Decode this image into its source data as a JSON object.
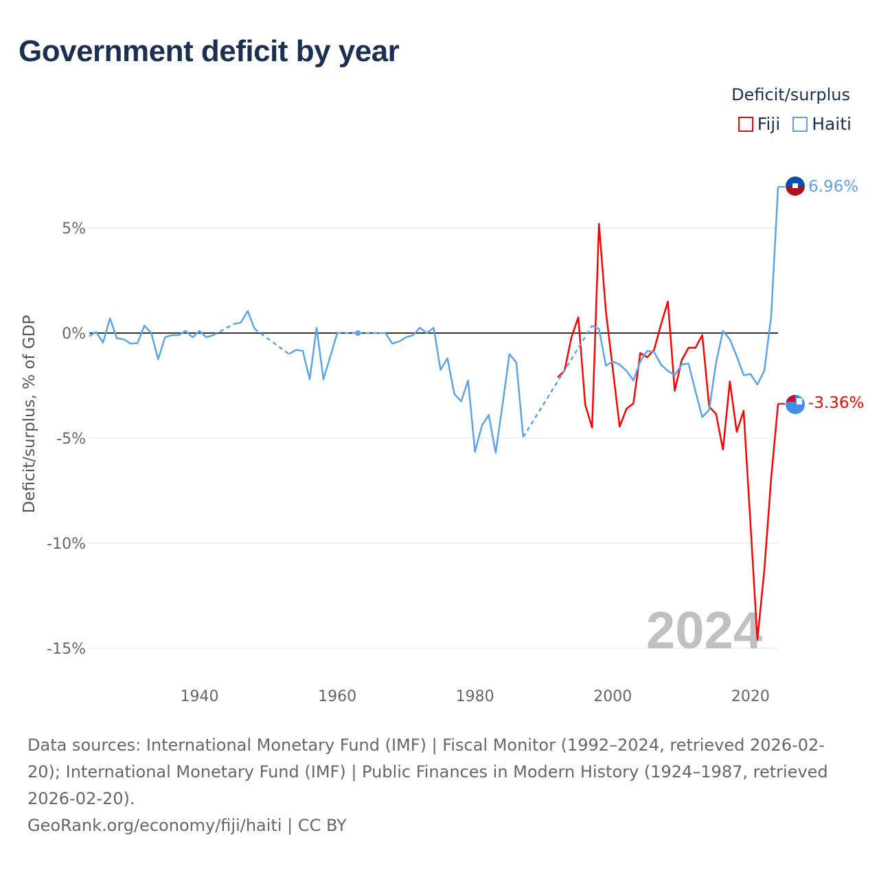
{
  "title": "Government deficit by year",
  "legend": {
    "title": "Deficit/surplus",
    "items": [
      {
        "name": "Fiji",
        "color": "#ff0000"
      },
      {
        "name": "Haiti",
        "color": "#5ba4ec"
      }
    ]
  },
  "watermark_year": "2024",
  "end_labels": {
    "haiti": "6.96%",
    "fiji": "-3.36%"
  },
  "footer": {
    "sources": "Data sources: International Monetary Fund (IMF) | Fiscal Monitor (1992–2024, retrieved 2026-02-20); International Monetary Fund (IMF) | Public Finances in Modern History (1924–1987, retrieved 2026-02-20).",
    "credit": "GeoRank.org/economy/fiji/haiti | CC BY"
  },
  "chart_data": {
    "type": "line",
    "title": "Government deficit by year",
    "xlabel": "",
    "ylabel": "Deficit/surplus, % of GDP",
    "xlim": [
      1924,
      2024
    ],
    "ylim": [
      -16.5,
      8.5
    ],
    "xticks": [
      1940,
      1960,
      1980,
      2000,
      2020
    ],
    "yticks": [
      5,
      0,
      -5,
      -10,
      -15
    ],
    "ytick_labels": [
      "5%",
      "0%",
      "-5%",
      "-10%",
      "-15%"
    ],
    "grid": true,
    "legend_position": "top-right",
    "series": [
      {
        "name": "Haiti",
        "color": "#5ba4ec",
        "start_year": 1924,
        "values": [
          -0.15,
          0.05,
          -0.45,
          0.7,
          -0.25,
          -0.3,
          -0.5,
          -0.48,
          0.35,
          0,
          -1.25,
          -0.2,
          -0.1,
          -0.1,
          0.1,
          -0.2,
          0.1,
          -0.2,
          -0.1,
          null,
          null,
          0.43,
          0.5,
          1.05,
          0.2,
          null,
          null,
          null,
          null,
          -1.0,
          -0.8,
          -0.85,
          -2.2,
          0.25,
          -2.2,
          -1.1,
          0,
          null,
          null,
          0,
          null,
          null,
          0,
          0,
          -0.5,
          -0.4,
          -0.2,
          -0.1,
          0.25,
          0,
          0.25,
          -1.75,
          -1.2,
          -2.9,
          -3.25,
          -2.25,
          -5.65,
          -4.4,
          -3.9,
          -5.7,
          -3.4,
          -1.0,
          -1.4,
          -4.95,
          null,
          null,
          null,
          null,
          null,
          null,
          null,
          null,
          null,
          0.35,
          0.2,
          -1.55,
          -1.35,
          -1.5,
          -1.8,
          -2.25,
          -1.35,
          -0.85,
          -0.9,
          -1.5,
          -1.8,
          -2.0,
          -1.5,
          -1.45,
          -2.75,
          -4.0,
          -3.65,
          -1.4,
          0.1,
          -0.3,
          -1.1,
          -2.0,
          -1.95,
          -2.45,
          -1.8,
          0.8,
          6.96
        ]
      },
      {
        "name": "Fiji",
        "color": "#ff0000",
        "start_year": 1992,
        "values": [
          -2.1,
          -1.8,
          -0.2,
          0.75,
          -3.4,
          -4.5,
          5.2,
          1.05,
          -1.7,
          -4.45,
          -3.6,
          -3.35,
          -0.95,
          -1.15,
          -0.8,
          0.4,
          1.5,
          -2.75,
          -1.3,
          -0.7,
          -0.7,
          -0.1,
          -3.5,
          -3.85,
          -5.55,
          -2.3,
          -4.7,
          -3.7,
          -9.1,
          -14.6,
          -11.3,
          -6.9,
          -3.36
        ]
      }
    ]
  }
}
